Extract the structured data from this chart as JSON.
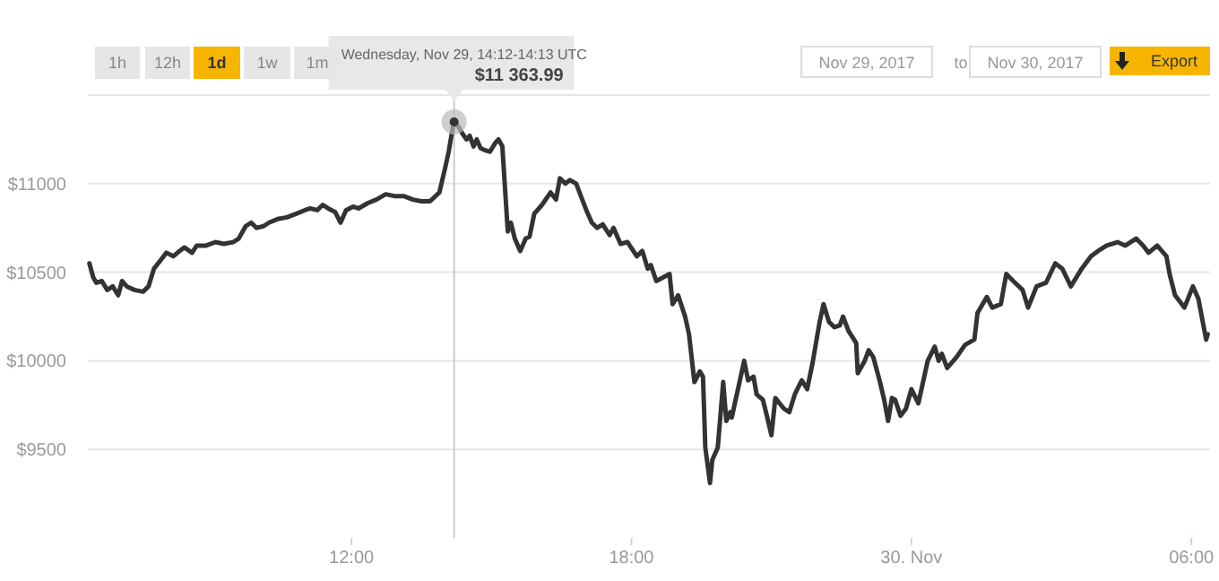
{
  "chart_data": {
    "type": "line",
    "x": [
      "2017-11-29T06:23",
      "2017-11-29T06:28",
      "2017-11-29T06:32",
      "2017-11-29T06:39",
      "2017-11-29T06:46",
      "2017-11-29T06:53",
      "2017-11-29T07:00",
      "2017-11-29T07:05",
      "2017-11-29T07:11",
      "2017-11-29T07:21",
      "2017-11-29T07:32",
      "2017-11-29T07:39",
      "2017-11-29T07:46",
      "2017-11-29T07:55",
      "2017-11-29T08:02",
      "2017-11-29T08:11",
      "2017-11-29T08:19",
      "2017-11-29T08:25",
      "2017-11-29T08:35",
      "2017-11-29T08:41",
      "2017-11-29T08:53",
      "2017-11-29T09:05",
      "2017-11-29T09:16",
      "2017-11-29T09:28",
      "2017-11-29T09:35",
      "2017-11-29T09:44",
      "2017-11-29T09:51",
      "2017-11-29T09:58",
      "2017-11-29T10:07",
      "2017-11-29T10:14",
      "2017-11-29T10:25",
      "2017-11-29T10:37",
      "2017-11-29T10:49",
      "2017-11-29T11:00",
      "2017-11-29T11:07",
      "2017-11-29T11:16",
      "2017-11-29T11:23",
      "2017-11-29T11:30",
      "2017-11-29T11:39",
      "2017-11-29T11:46",
      "2017-11-29T11:53",
      "2017-11-29T12:02",
      "2017-11-29T12:09",
      "2017-11-29T12:21",
      "2017-11-29T12:32",
      "2017-11-29T12:44",
      "2017-11-29T12:55",
      "2017-11-29T13:07",
      "2017-11-29T13:19",
      "2017-11-29T13:30",
      "2017-11-29T13:41",
      "2017-11-29T13:53",
      "2017-11-29T14:00",
      "2017-11-29T14:05",
      "2017-11-29T14:12",
      "2017-11-29T14:19",
      "2017-11-29T14:23",
      "2017-11-29T14:28",
      "2017-11-29T14:32",
      "2017-11-29T14:37",
      "2017-11-29T14:41",
      "2017-11-29T14:46",
      "2017-11-29T14:51",
      "2017-11-29T14:58",
      "2017-11-29T15:05",
      "2017-11-29T15:09",
      "2017-11-29T15:14",
      "2017-11-29T15:21",
      "2017-11-29T15:25",
      "2017-11-29T15:30",
      "2017-11-29T15:37",
      "2017-11-29T15:44",
      "2017-11-29T15:49",
      "2017-11-29T15:55",
      "2017-11-29T16:05",
      "2017-11-29T16:16",
      "2017-11-29T16:23",
      "2017-11-29T16:28",
      "2017-11-29T16:35",
      "2017-11-29T16:41",
      "2017-11-29T16:49",
      "2017-11-29T16:55",
      "2017-11-29T17:02",
      "2017-11-29T17:09",
      "2017-11-29T17:16",
      "2017-11-29T17:23",
      "2017-11-29T17:32",
      "2017-11-29T17:37",
      "2017-11-29T17:46",
      "2017-11-29T17:55",
      "2017-11-29T18:07",
      "2017-11-29T18:14",
      "2017-11-29T18:21",
      "2017-11-29T18:25",
      "2017-11-29T18:32",
      "2017-11-29T18:49",
      "2017-11-29T18:53",
      "2017-11-29T19:00",
      "2017-11-29T19:09",
      "2017-11-29T19:14",
      "2017-11-29T19:21",
      "2017-11-29T19:28",
      "2017-11-29T19:32",
      "2017-11-29T19:35",
      "2017-11-29T19:41",
      "2017-11-29T19:44",
      "2017-11-29T19:51",
      "2017-11-29T19:58",
      "2017-11-29T20:02",
      "2017-11-29T20:07",
      "2017-11-29T20:09",
      "2017-11-29T20:19",
      "2017-11-29T20:25",
      "2017-11-29T20:30",
      "2017-11-29T20:37",
      "2017-11-29T20:41",
      "2017-11-29T20:49",
      "2017-11-29T20:53",
      "2017-11-29T21:00",
      "2017-11-29T21:05",
      "2017-11-29T21:16",
      "2017-11-29T21:23",
      "2017-11-29T21:30",
      "2017-11-29T21:39",
      "2017-11-29T21:46",
      "2017-11-29T21:53",
      "2017-11-29T22:02",
      "2017-11-29T22:07",
      "2017-11-29T22:14",
      "2017-11-29T22:21",
      "2017-11-29T22:28",
      "2017-11-29T22:32",
      "2017-11-29T22:39",
      "2017-11-29T22:49",
      "2017-11-29T22:51",
      "2017-11-29T23:00",
      "2017-11-29T23:05",
      "2017-11-29T23:11",
      "2017-11-29T23:19",
      "2017-11-29T23:25",
      "2017-11-29T23:30",
      "2017-11-29T23:35",
      "2017-11-29T23:39",
      "2017-11-29T23:46",
      "2017-11-29T23:53",
      "2017-11-30T00:00",
      "2017-11-30T00:09",
      "2017-11-30T00:21",
      "2017-11-30T00:30",
      "2017-11-30T00:35",
      "2017-11-30T00:39",
      "2017-11-30T00:46",
      "2017-11-30T00:58",
      "2017-11-30T01:09",
      "2017-11-30T01:21",
      "2017-11-30T01:25",
      "2017-11-30T01:37",
      "2017-11-30T01:44",
      "2017-11-30T01:55",
      "2017-11-30T02:02",
      "2017-11-30T02:11",
      "2017-11-30T02:23",
      "2017-11-30T02:30",
      "2017-11-30T02:41",
      "2017-11-30T02:53",
      "2017-11-30T03:05",
      "2017-11-30T03:14",
      "2017-11-30T03:25",
      "2017-11-30T03:39",
      "2017-11-30T03:51",
      "2017-11-30T04:00",
      "2017-11-30T04:11",
      "2017-11-30T04:25",
      "2017-11-30T04:35",
      "2017-11-30T04:49",
      "2017-11-30T04:58",
      "2017-11-30T05:05",
      "2017-11-30T05:16",
      "2017-11-30T05:28",
      "2017-11-30T05:32",
      "2017-11-30T05:39",
      "2017-11-30T05:51",
      "2017-11-30T06:02",
      "2017-11-30T06:09",
      "2017-11-30T06:19",
      "2017-11-30T06:21"
    ],
    "series": [
      {
        "color": "#333333",
        "values": [
          10550,
          10470,
          10440,
          10450,
          10400,
          10420,
          10370,
          10450,
          10420,
          10400,
          10390,
          10420,
          10520,
          10570,
          10610,
          10590,
          10620,
          10640,
          10610,
          10650,
          10650,
          10670,
          10660,
          10670,
          10690,
          10760,
          10780,
          10750,
          10760,
          10780,
          10800,
          10810,
          10830,
          10850,
          10860,
          10850,
          10880,
          10860,
          10840,
          10780,
          10850,
          10870,
          10860,
          10890,
          10910,
          10940,
          10930,
          10930,
          10910,
          10900,
          10900,
          10950,
          11080,
          11180,
          11360,
          11310,
          11280,
          11250,
          11270,
          11210,
          11250,
          11200,
          11190,
          11180,
          11230,
          11250,
          11210,
          10730,
          10780,
          10690,
          10620,
          10690,
          10700,
          10830,
          10880,
          10950,
          10910,
          11030,
          11000,
          11020,
          11000,
          10930,
          10850,
          10780,
          10750,
          10770,
          10710,
          10750,
          10660,
          10670,
          10590,
          10620,
          10520,
          10540,
          10450,
          10490,
          10320,
          10370,
          10250,
          10150,
          9880,
          9940,
          9910,
          9510,
          9310,
          9440,
          9510,
          9880,
          9660,
          9710,
          9680,
          9880,
          10000,
          9890,
          9910,
          9810,
          9780,
          9710,
          9580,
          9790,
          9730,
          9710,
          9810,
          9890,
          9840,
          9990,
          10220,
          10320,
          10220,
          10190,
          10200,
          10250,
          10170,
          10100,
          9930,
          10000,
          10060,
          10020,
          9890,
          9780,
          9660,
          9790,
          9780,
          9690,
          9730,
          9840,
          9760,
          10000,
          10080,
          10000,
          10040,
          9960,
          10020,
          10090,
          10120,
          10270,
          10360,
          10300,
          10320,
          10490,
          10450,
          10400,
          10300,
          10420,
          10440,
          10550,
          10520,
          10420,
          10520,
          10590,
          10620,
          10650,
          10670,
          10650,
          10690,
          10650,
          10610,
          10650,
          10590,
          10490,
          10370,
          10300,
          10420,
          10350,
          10120,
          10150
        ]
      }
    ],
    "xlim": [
      "2017-11-29T06:21",
      "2017-11-30T06:24"
    ],
    "xticks": [
      {
        "value": "2017-11-29T12:00",
        "label": "12:00"
      },
      {
        "value": "2017-11-29T18:00",
        "label": "18:00"
      },
      {
        "value": "2017-11-30T00:00",
        "label": "30. Nov"
      },
      {
        "value": "2017-11-30T06:00",
        "label": "06:00"
      }
    ],
    "ylim": [
      9000,
      11500
    ],
    "yticks": [
      {
        "value": 9500,
        "label": "$9500"
      },
      {
        "value": 10000,
        "label": "$10000"
      },
      {
        "value": 10500,
        "label": "$10500"
      },
      {
        "value": 11000,
        "label": "$11000"
      },
      {
        "value": 11500,
        "label": null
      }
    ],
    "grid": "y",
    "ref_lines": [
      {
        "axis": "x",
        "value": "2017-11-29T14:12",
        "color": "#cccccc"
      }
    ],
    "annotations": [
      "1h",
      "12h",
      "1d",
      "1w",
      "1m",
      "Nov 29, 2017",
      "to",
      "Nov 30, 2017",
      "Export",
      "Wednesday, Nov 29, 14:12-14:13 UTC",
      "$11 363.99"
    ]
  }
}
